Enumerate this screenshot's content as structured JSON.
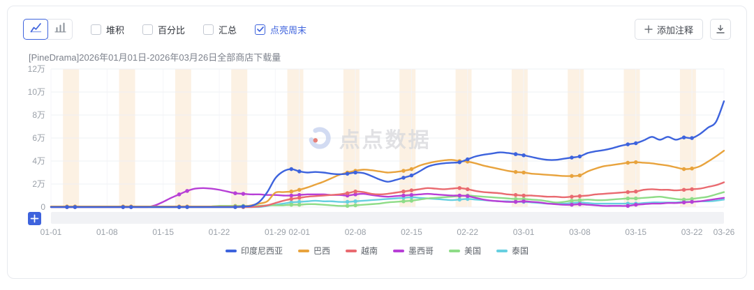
{
  "toolbar": {
    "chart_type_selected": "line",
    "checkboxes": [
      {
        "label": "堆积",
        "checked": false
      },
      {
        "label": "百分比",
        "checked": false
      },
      {
        "label": "汇总",
        "checked": false
      },
      {
        "label": "点亮周末",
        "checked": true
      }
    ],
    "add_annotation_label": "添加注释"
  },
  "chart": {
    "title": "[PineDrama]2026年01月01日-2026年03月26日全部商店下载量"
  },
  "watermark": {
    "text": "点点数据"
  },
  "colors": {
    "accent": "#3e63dd",
    "weekend_band": "#fcf1e3",
    "grid": "#eef0f4",
    "vgrid": "#f4f5f8",
    "axis_label": "#9aa0a8",
    "zoom_strip": "#f1f2f5"
  },
  "chart_data": {
    "type": "line",
    "title": "[PineDrama]2026年01月01日-2026年03月26日全部商店下载量",
    "unit": "万 (×10,000 downloads)",
    "num_points": 85,
    "ylim": [
      0,
      12
    ],
    "y_ticks": [
      "0",
      "2万",
      "4万",
      "6万",
      "8万",
      "10万",
      "12万"
    ],
    "x_tick_labels": [
      {
        "index": 0,
        "label": "01-01"
      },
      {
        "index": 7,
        "label": "01-08"
      },
      {
        "index": 14,
        "label": "01-15"
      },
      {
        "index": 21,
        "label": "01-22"
      },
      {
        "index": 28,
        "label": "01-29"
      },
      {
        "index": 31,
        "label": "02-01"
      },
      {
        "index": 38,
        "label": "02-08"
      },
      {
        "index": 45,
        "label": "02-15"
      },
      {
        "index": 52,
        "label": "02-22"
      },
      {
        "index": 59,
        "label": "03-01"
      },
      {
        "index": 66,
        "label": "03-08"
      },
      {
        "index": 73,
        "label": "03-15"
      },
      {
        "index": 80,
        "label": "03-22"
      },
      {
        "index": 84,
        "label": "03-26"
      }
    ],
    "weekend_highlight": true,
    "weekend_start_indices": [
      2,
      9,
      16,
      23,
      30,
      37,
      44,
      51,
      58,
      65,
      72,
      79
    ],
    "legend_position": "bottom",
    "series": [
      {
        "name": "印度尼西亚",
        "color": "#3d63dd",
        "values": [
          0,
          0,
          0,
          0,
          0,
          0,
          0,
          0,
          0,
          0,
          0,
          0,
          0,
          0,
          0,
          0,
          0,
          0,
          0,
          0,
          0,
          0,
          0,
          0,
          0.05,
          0.1,
          0.45,
          1.3,
          2.5,
          3.1,
          3.3,
          3.1,
          3.0,
          3.05,
          3.0,
          2.9,
          2.85,
          2.9,
          3.0,
          2.95,
          2.7,
          2.4,
          2.2,
          2.35,
          2.55,
          2.75,
          3.1,
          3.5,
          3.7,
          3.8,
          3.85,
          3.9,
          4.15,
          4.4,
          4.55,
          4.65,
          4.75,
          4.7,
          4.6,
          4.5,
          4.35,
          4.2,
          4.1,
          4.1,
          4.2,
          4.3,
          4.4,
          4.7,
          4.85,
          4.95,
          5.1,
          5.3,
          5.45,
          5.55,
          5.8,
          6.1,
          5.85,
          6.1,
          5.85,
          6.05,
          6.0,
          6.35,
          6.9,
          7.4,
          9.2
        ]
      },
      {
        "name": "巴西",
        "color": "#e8a33d",
        "values": [
          0.05,
          0.05,
          0.05,
          0.05,
          0.05,
          0.05,
          0.05,
          0.05,
          0.05,
          0.05,
          0.05,
          0.05,
          0.05,
          0.05,
          0.05,
          0.05,
          0.05,
          0.05,
          0.05,
          0.05,
          0.05,
          0.05,
          0.05,
          0.05,
          0.05,
          0.15,
          0.3,
          0.5,
          1.25,
          1.3,
          1.35,
          1.5,
          1.7,
          1.95,
          2.2,
          2.5,
          2.8,
          3.0,
          3.15,
          3.25,
          3.2,
          3.1,
          3.0,
          3.05,
          3.15,
          3.3,
          3.6,
          3.8,
          3.95,
          4.05,
          4.1,
          4.0,
          3.95,
          3.8,
          3.6,
          3.45,
          3.3,
          3.15,
          3.05,
          3.0,
          2.9,
          2.85,
          2.8,
          2.75,
          2.7,
          2.7,
          2.75,
          3.1,
          3.35,
          3.55,
          3.65,
          3.75,
          3.85,
          3.9,
          3.85,
          3.8,
          3.7,
          3.6,
          3.45,
          3.3,
          3.35,
          3.55,
          3.95,
          4.4,
          4.9
        ]
      },
      {
        "name": "越南",
        "color": "#e96a70",
        "values": [
          0,
          0,
          0,
          0,
          0,
          0,
          0,
          0,
          0,
          0,
          0,
          0,
          0,
          0,
          0,
          0,
          0,
          0,
          0,
          0,
          0,
          0,
          0,
          0,
          0,
          0,
          0.05,
          0.15,
          0.35,
          0.55,
          0.7,
          0.8,
          0.9,
          0.95,
          1.0,
          1.05,
          1.1,
          1.2,
          1.35,
          1.3,
          1.15,
          1.1,
          1.15,
          1.25,
          1.35,
          1.45,
          1.55,
          1.65,
          1.6,
          1.55,
          1.6,
          1.65,
          1.55,
          1.4,
          1.3,
          1.25,
          1.2,
          1.1,
          1.05,
          1.0,
          1.0,
          0.95,
          0.9,
          0.9,
          0.85,
          0.9,
          0.95,
          1.0,
          1.1,
          1.15,
          1.2,
          1.25,
          1.3,
          1.35,
          1.5,
          1.55,
          1.5,
          1.5,
          1.45,
          1.5,
          1.55,
          1.6,
          1.75,
          1.9,
          2.15
        ]
      },
      {
        "name": "墨西哥",
        "color": "#b73fd6",
        "values": [
          0,
          0,
          0,
          0,
          0,
          0,
          0,
          0,
          0,
          0,
          0,
          0,
          0,
          0.15,
          0.45,
          0.8,
          1.1,
          1.4,
          1.6,
          1.65,
          1.6,
          1.5,
          1.35,
          1.2,
          1.15,
          1.1,
          1.1,
          1.05,
          1.05,
          1.0,
          1.0,
          1.05,
          1.1,
          1.1,
          1.1,
          1.05,
          1.05,
          1.0,
          1.1,
          1.15,
          1.05,
          0.95,
          0.9,
          0.95,
          1.0,
          1.05,
          1.1,
          1.15,
          1.1,
          1.05,
          1.0,
          1.0,
          0.95,
          0.8,
          0.65,
          0.55,
          0.5,
          0.45,
          0.45,
          0.5,
          0.45,
          0.4,
          0.3,
          0.25,
          0.2,
          0.2,
          0.25,
          0.2,
          0.15,
          0.1,
          0.1,
          0.1,
          0.1,
          0.2,
          0.25,
          0.3,
          0.3,
          0.35,
          0.35,
          0.4,
          0.45,
          0.5,
          0.6,
          0.7,
          0.8
        ]
      },
      {
        "name": "美国",
        "color": "#8edc87",
        "values": [
          0,
          0,
          0,
          0,
          0,
          0,
          0,
          0,
          0,
          0,
          0,
          0,
          0,
          0,
          0,
          0,
          0,
          0,
          0,
          0,
          0.05,
          0.1,
          0.1,
          0.1,
          0.1,
          0.1,
          0.1,
          0.15,
          0.15,
          0.15,
          0.2,
          0.2,
          0.25,
          0.25,
          0.2,
          0.15,
          0.1,
          0.1,
          0.15,
          0.2,
          0.25,
          0.3,
          0.4,
          0.45,
          0.5,
          0.55,
          0.65,
          0.75,
          0.8,
          0.85,
          0.9,
          0.95,
          1.0,
          0.95,
          0.9,
          0.85,
          0.8,
          0.75,
          0.7,
          0.7,
          0.65,
          0.6,
          0.5,
          0.4,
          0.45,
          0.55,
          0.6,
          0.65,
          0.6,
          0.6,
          0.65,
          0.7,
          0.75,
          0.75,
          0.8,
          0.85,
          0.9,
          0.8,
          0.7,
          0.65,
          0.7,
          0.8,
          0.9,
          1.1,
          1.3
        ]
      },
      {
        "name": "泰国",
        "color": "#67cfe0",
        "values": [
          0,
          0,
          0,
          0,
          0,
          0,
          0,
          0,
          0,
          0,
          0,
          0,
          0,
          0,
          0,
          0,
          0,
          0,
          0,
          0,
          0,
          0,
          0,
          0,
          0,
          0,
          0,
          0.1,
          0.2,
          0.3,
          0.4,
          0.45,
          0.5,
          0.55,
          0.5,
          0.5,
          0.45,
          0.45,
          0.5,
          0.55,
          0.6,
          0.65,
          0.7,
          0.75,
          0.8,
          0.85,
          0.8,
          0.75,
          0.7,
          0.65,
          0.6,
          0.65,
          0.7,
          0.65,
          0.6,
          0.55,
          0.5,
          0.5,
          0.45,
          0.45,
          0.4,
          0.35,
          0.3,
          0.3,
          0.3,
          0.35,
          0.4,
          0.35,
          0.3,
          0.3,
          0.3,
          0.3,
          0.3,
          0.3,
          0.35,
          0.4,
          0.4,
          0.4,
          0.4,
          0.45,
          0.45,
          0.5,
          0.5,
          0.55,
          0.65
        ]
      }
    ]
  }
}
